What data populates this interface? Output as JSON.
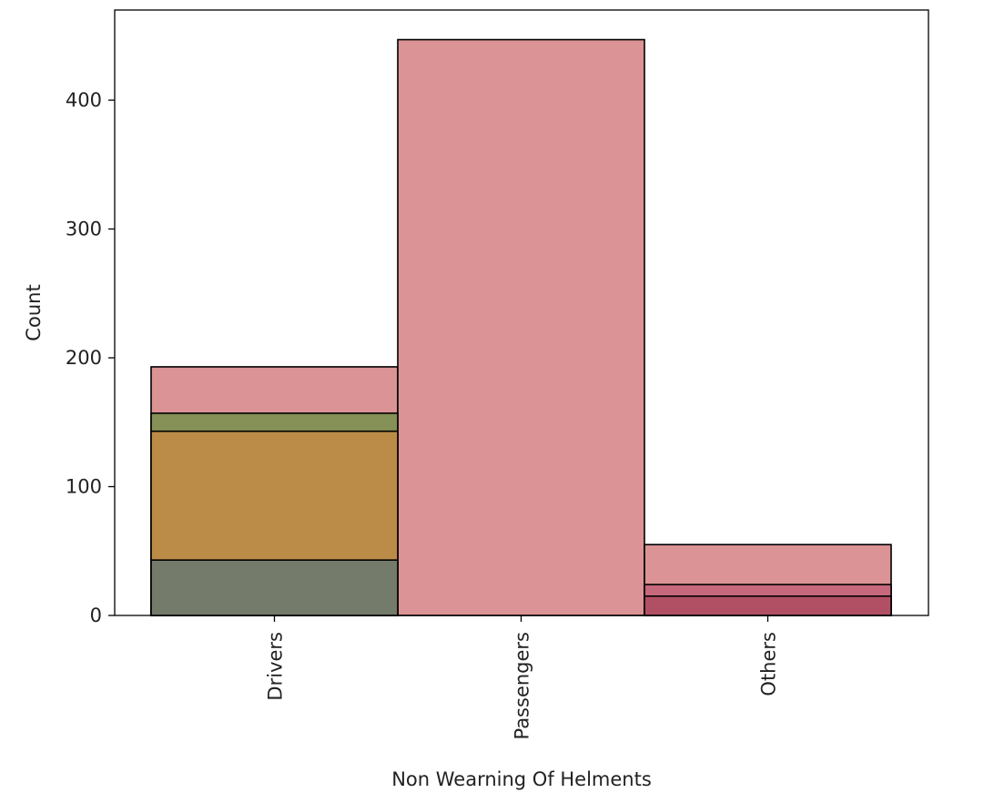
{
  "chart_data": {
    "type": "bar",
    "title": "",
    "xlabel": "Non Wearning Of Helments",
    "ylabel": "Count",
    "categories": [
      "Drivers",
      "Passengers",
      "Others"
    ],
    "ylim": [
      0,
      470
    ],
    "yticks": [
      0,
      100,
      200,
      300,
      400
    ],
    "grid": false,
    "legend": "none",
    "layers": [
      {
        "color": "#d88a8c",
        "opacity": 0.92,
        "values": [
          193,
          447,
          55
        ]
      },
      {
        "color": "#7e9050",
        "opacity": 0.92,
        "values": [
          157,
          0,
          0
        ]
      },
      {
        "color": "#bd8b48",
        "opacity": 0.96,
        "values": [
          143,
          0,
          0
        ]
      },
      {
        "color": "#6f7a6e",
        "opacity": 0.92,
        "values": [
          43,
          0,
          0
        ]
      },
      {
        "color": "#c76479",
        "opacity": 0.92,
        "values": [
          0,
          0,
          24
        ]
      },
      {
        "color": "#b04f63",
        "opacity": 0.95,
        "values": [
          0,
          0,
          15
        ]
      }
    ]
  }
}
